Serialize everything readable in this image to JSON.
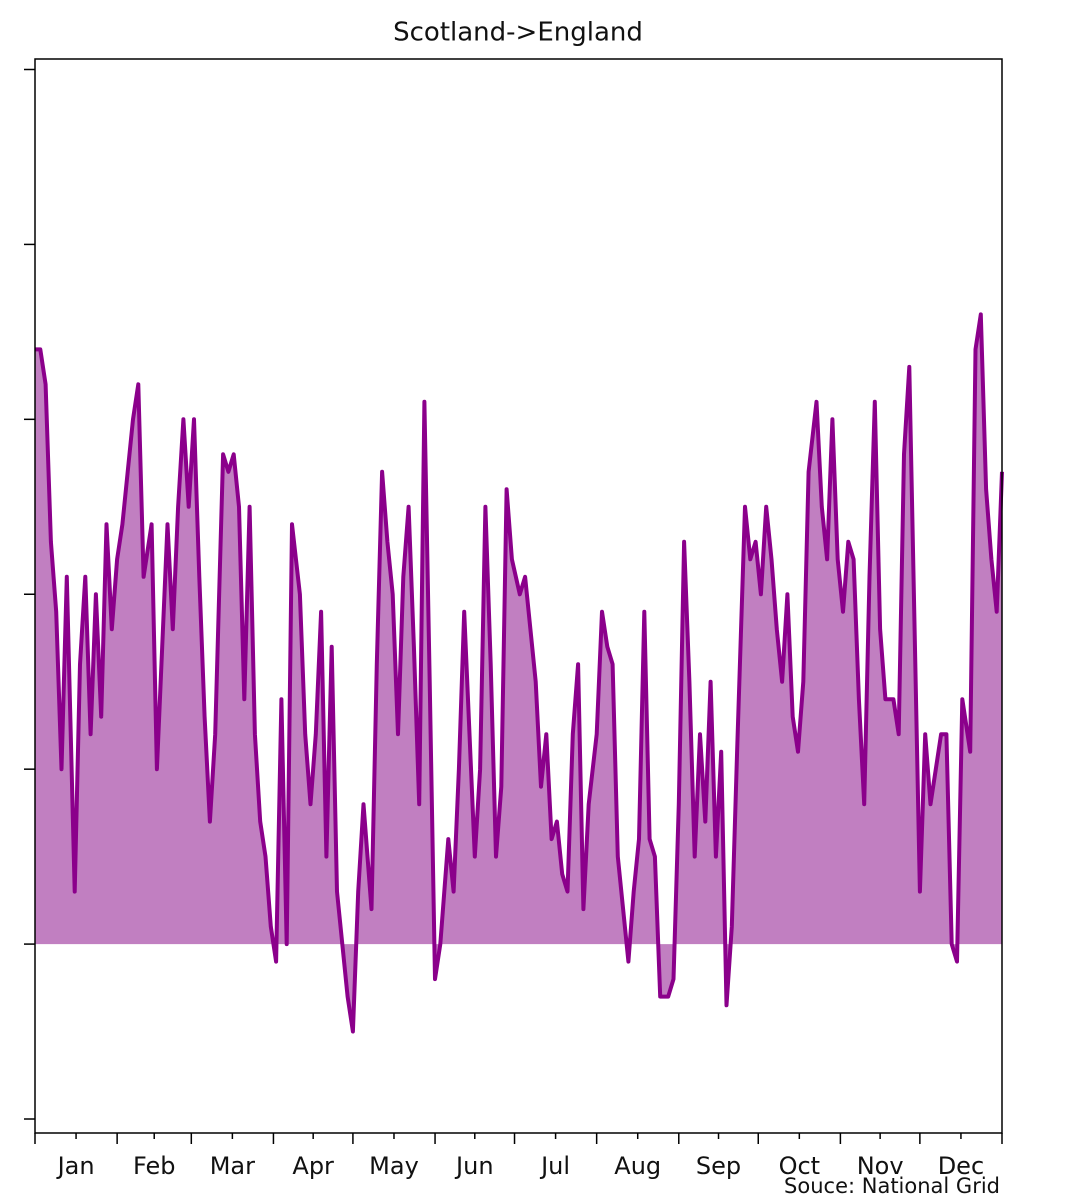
{
  "chart_data": {
    "type": "area",
    "title": "Scotland->England",
    "annotation": "Souce: National Grid",
    "color": "#8b008b",
    "fill": "#c17fc1",
    "xlim": [
      0,
      365
    ],
    "ylim": [
      -1.08,
      5.06
    ],
    "yticks": [
      -1,
      0,
      1,
      2,
      3,
      4,
      5
    ],
    "x_boundaries": [
      0,
      31,
      59,
      90,
      120,
      151,
      181,
      212,
      243,
      273,
      304,
      334,
      365
    ],
    "xticks": [
      {
        "value": 15.5,
        "label": "Jan"
      },
      {
        "value": 45,
        "label": "Feb"
      },
      {
        "value": 74.5,
        "label": "Mar"
      },
      {
        "value": 105,
        "label": "Apr"
      },
      {
        "value": 135.5,
        "label": "May"
      },
      {
        "value": 166,
        "label": "Jun"
      },
      {
        "value": 196.5,
        "label": "Jul"
      },
      {
        "value": 227.5,
        "label": "Aug"
      },
      {
        "value": 258,
        "label": "Sep"
      },
      {
        "value": 288.5,
        "label": "Oct"
      },
      {
        "value": 319,
        "label": "Nov"
      },
      {
        "value": 349.5,
        "label": "Dec"
      }
    ],
    "x": [
      0,
      2,
      4,
      6,
      8,
      10,
      12,
      15,
      17,
      19,
      21,
      23,
      25,
      27,
      29,
      31,
      33,
      35,
      37,
      39,
      41,
      44,
      46,
      48,
      50,
      52,
      54,
      56,
      58,
      60,
      62,
      64,
      66,
      68,
      71,
      73,
      75,
      77,
      79,
      81,
      83,
      85,
      87,
      89,
      91,
      93,
      95,
      97,
      100,
      102,
      104,
      106,
      108,
      110,
      112,
      114,
      116,
      118,
      120,
      122,
      124,
      127,
      129,
      131,
      133,
      135,
      137,
      139,
      141,
      143,
      145,
      147,
      149,
      151,
      153,
      156,
      158,
      160,
      162,
      164,
      166,
      168,
      170,
      172,
      174,
      176,
      178,
      180,
      183,
      185,
      187,
      189,
      191,
      193,
      195,
      197,
      199,
      201,
      203,
      205,
      207,
      209,
      212,
      214,
      216,
      218,
      220,
      222,
      224,
      226,
      228,
      230,
      232,
      234,
      236,
      239,
      241,
      243,
      245,
      247,
      249,
      251,
      253,
      255,
      257,
      259,
      261,
      263,
      265,
      268,
      270,
      272,
      274,
      276,
      278,
      280,
      282,
      284,
      286,
      288,
      290,
      292,
      295,
      297,
      299,
      301,
      303,
      305,
      307,
      309,
      311,
      313,
      315,
      317,
      319,
      321,
      324,
      326,
      328,
      330,
      332,
      334,
      336,
      338,
      340,
      342,
      344,
      346,
      348,
      350,
      353,
      355,
      357,
      359,
      361,
      363,
      365
    ],
    "values": [
      3.4,
      3.4,
      3.2,
      2.3,
      1.9,
      1.0,
      2.1,
      0.3,
      1.6,
      2.1,
      1.2,
      2.0,
      1.3,
      2.4,
      1.8,
      2.2,
      2.4,
      2.7,
      3.0,
      3.2,
      2.1,
      2.4,
      1.0,
      1.7,
      2.4,
      1.8,
      2.5,
      3.0,
      2.5,
      3.0,
      2.1,
      1.3,
      0.7,
      1.2,
      2.8,
      2.7,
      2.8,
      2.5,
      1.4,
      2.5,
      1.2,
      0.7,
      0.5,
      0.1,
      -0.1,
      1.4,
      0.0,
      2.4,
      2.0,
      1.2,
      0.8,
      1.2,
      1.9,
      0.5,
      1.7,
      0.3,
      0.0,
      -0.3,
      -0.5,
      0.3,
      0.8,
      0.2,
      1.6,
      2.7,
      2.3,
      2.0,
      1.2,
      2.1,
      2.5,
      1.7,
      0.8,
      3.1,
      1.5,
      -0.2,
      0.0,
      0.6,
      0.3,
      1.0,
      1.9,
      1.2,
      0.5,
      1.0,
      2.5,
      1.6,
      0.5,
      0.9,
      2.6,
      2.2,
      2.0,
      2.1,
      1.8,
      1.5,
      0.9,
      1.2,
      0.6,
      0.7,
      0.4,
      0.3,
      1.2,
      1.6,
      0.2,
      0.8,
      1.2,
      1.9,
      1.7,
      1.6,
      0.5,
      0.2,
      -0.1,
      0.3,
      0.6,
      1.9,
      0.6,
      0.5,
      -0.3,
      -0.3,
      -0.2,
      0.8,
      2.3,
      1.5,
      0.5,
      1.2,
      0.7,
      1.5,
      0.5,
      1.1,
      -0.35,
      0.1,
      1.1,
      2.5,
      2.2,
      2.3,
      2.0,
      2.5,
      2.2,
      1.8,
      1.5,
      2.0,
      1.3,
      1.1,
      1.5,
      2.7,
      3.1,
      2.5,
      2.2,
      3.0,
      2.2,
      1.9,
      2.3,
      2.2,
      1.4,
      0.8,
      2.1,
      3.1,
      1.8,
      1.4,
      1.4,
      1.2,
      2.8,
      3.3,
      1.8,
      0.3,
      1.2,
      0.8,
      1.0,
      1.2,
      1.2,
      0.0,
      -0.1,
      1.4,
      1.1,
      3.4,
      3.6,
      2.6,
      2.2,
      1.9,
      2.7
    ]
  }
}
